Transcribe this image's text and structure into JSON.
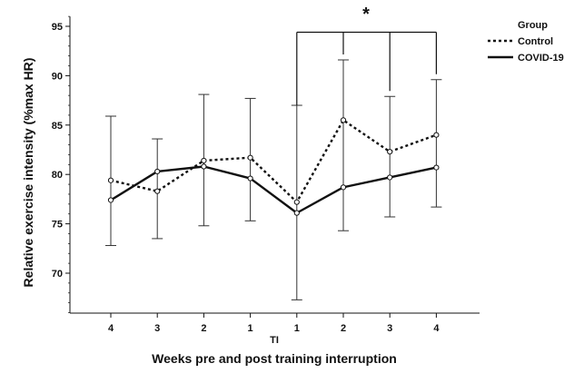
{
  "chart_data": {
    "type": "line",
    "xlabel": "Weeks pre and post training interruption",
    "ylabel": "Relative exercise intensity (%max HR)",
    "categories": [
      "4",
      "3",
      "2",
      "1",
      "1",
      "2",
      "3",
      "4"
    ],
    "interruption_label": "TI",
    "ylim": [
      65,
      96
    ],
    "yticks": [
      70,
      75,
      80,
      85,
      90,
      95
    ],
    "grid": false,
    "legend": {
      "title": "Group",
      "position": "top-right"
    },
    "series": [
      {
        "name": "Control",
        "style": "dotted",
        "values": [
          79.4,
          78.3,
          81.4,
          81.7,
          77.2,
          85.5,
          82.3,
          84.0
        ],
        "err_low": [
          72.8,
          73.5,
          74.8,
          75.3,
          67.3,
          74.3,
          75.7,
          76.7
        ],
        "err_high": [
          85.9,
          83.6,
          88.1,
          87.7,
          87.0,
          91.6,
          87.9,
          89.6
        ]
      },
      {
        "name": "COVID-19",
        "style": "solid",
        "values": [
          77.4,
          80.3,
          80.8,
          79.6,
          76.1,
          78.7,
          79.7,
          80.7
        ],
        "err_low": [
          72.8,
          73.5,
          74.8,
          75.3,
          67.3,
          74.3,
          75.7,
          76.7
        ],
        "err_high": [
          85.9,
          83.6,
          88.1,
          87.7,
          87.0,
          91.6,
          87.9,
          89.6
        ]
      }
    ],
    "significance": {
      "label": "*",
      "bracket_from_index": 4,
      "tick_indices": [
        4,
        5,
        6,
        7
      ],
      "bracket_level": 94.4
    }
  }
}
